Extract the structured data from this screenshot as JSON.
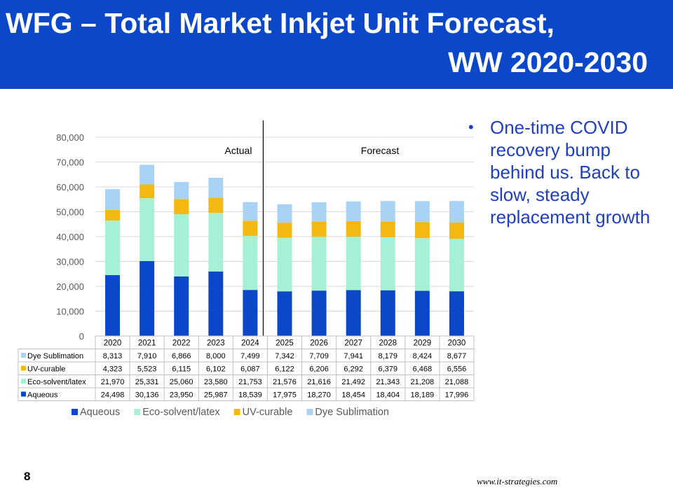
{
  "title": {
    "line1": "WFG – Total Market Inkjet Unit Forecast,",
    "line2": "WW 2020-2030"
  },
  "bullet": {
    "symbol": "•",
    "text": "One-time COVID recovery bump behind us.  Back to slow, steady replacement growth"
  },
  "page_number": "8",
  "footer_url": "www.it-strategies.com",
  "chart_data": {
    "type": "bar",
    "stacked": true,
    "categories": [
      "2020",
      "2021",
      "2022",
      "2023",
      "2024",
      "2025",
      "2026",
      "2027",
      "2028",
      "2029",
      "2030"
    ],
    "ylim": [
      0,
      80000
    ],
    "yticks": [
      "0",
      "10,000",
      "20,000",
      "30,000",
      "40,000",
      "50,000",
      "60,000",
      "70,000",
      "80,000"
    ],
    "grid": true,
    "annotations": [
      "Actual",
      "Forecast"
    ],
    "legend_position": "bottom",
    "series": [
      {
        "name": "Aqueous",
        "color": "#0a47c9",
        "values": [
          24498,
          30136,
          23950,
          25987,
          18539,
          17975,
          18270,
          18454,
          18404,
          18189,
          17996
        ],
        "labels": [
          "24,498",
          "30,136",
          "23,950",
          "25,987",
          "18,539",
          "17,975",
          "18,270",
          "18,454",
          "18,404",
          "18,189",
          "17,996"
        ]
      },
      {
        "name": "Eco-solvent/latex",
        "color": "#a6f0d6",
        "values": [
          21970,
          25331,
          25060,
          23580,
          21753,
          21576,
          21616,
          21492,
          21343,
          21208,
          21088
        ],
        "labels": [
          "21,970",
          "25,331",
          "25,060",
          "23,580",
          "21,753",
          "21,576",
          "21,616",
          "21,492",
          "21,343",
          "21,208",
          "21,088"
        ]
      },
      {
        "name": "UV-curable",
        "color": "#f4b911",
        "values": [
          4323,
          5523,
          6115,
          6102,
          6087,
          6122,
          6206,
          6292,
          6379,
          6468,
          6556
        ],
        "labels": [
          "4,323",
          "5,523",
          "6,115",
          "6,102",
          "6,087",
          "6,122",
          "6,206",
          "6,292",
          "6,379",
          "6,468",
          "6,556"
        ]
      },
      {
        "name": "Dye Sublimation",
        "color": "#a9d3f5",
        "values": [
          8313,
          7910,
          6866,
          8000,
          7499,
          7342,
          7709,
          7941,
          8179,
          8424,
          8677
        ],
        "labels": [
          "8,313",
          "7,910",
          "6,866",
          "8,000",
          "7,499",
          "7,342",
          "7,709",
          "7,941",
          "8,179",
          "8,424",
          "8,677"
        ]
      }
    ]
  }
}
